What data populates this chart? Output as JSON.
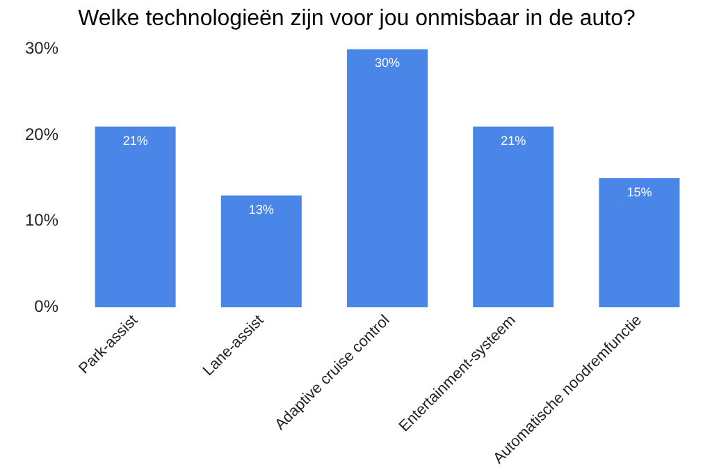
{
  "chart_data": {
    "type": "bar",
    "title": "Welke technologieën zijn voor jou onmisbaar in de auto?",
    "categories": [
      "Park-assist",
      "Lane-assist",
      "Adaptive cruise control",
      "Entertainment-systeem",
      "Automatische noodremfunctie"
    ],
    "values": [
      21,
      13,
      30,
      21,
      15
    ],
    "value_labels": [
      "21%",
      "13%",
      "30%",
      "21%",
      "15%"
    ],
    "color": "#4a86e8",
    "ylim": [
      0,
      30
    ],
    "yticks": [
      {
        "value": 0,
        "label": "0%"
      },
      {
        "value": 10,
        "label": "10%"
      },
      {
        "value": 20,
        "label": "20%"
      },
      {
        "value": 30,
        "label": "30%"
      }
    ],
    "grid": false,
    "legend": false
  }
}
